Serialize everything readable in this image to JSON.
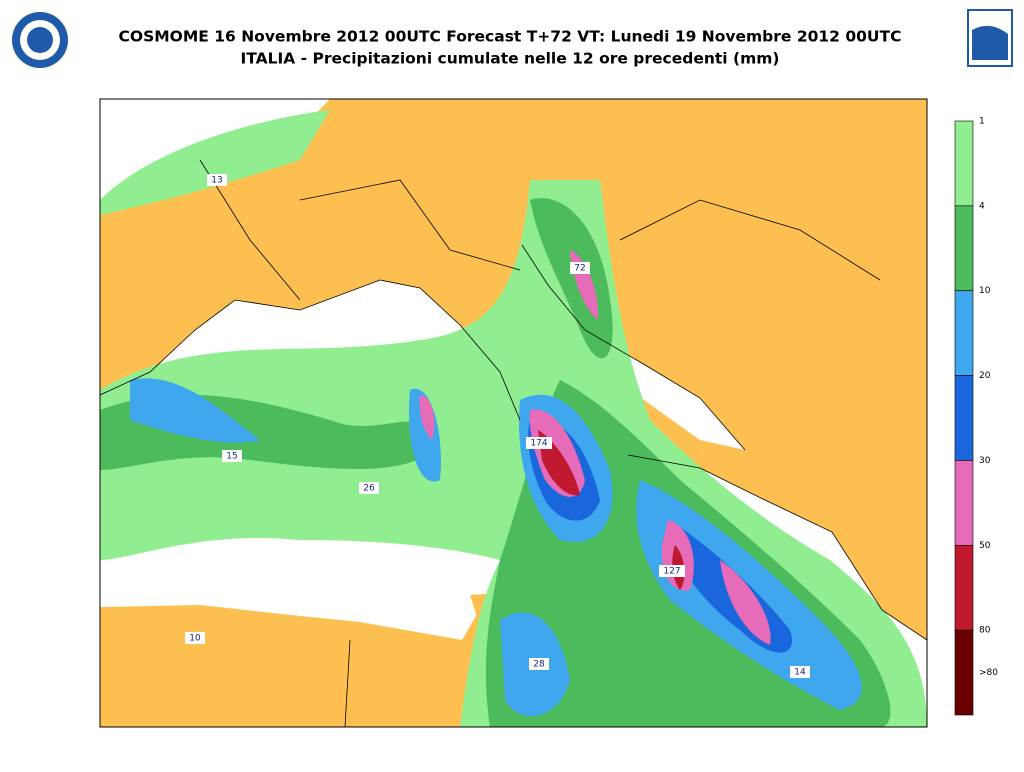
{
  "header": {
    "title": "COSMOME 16 Novembre 2012 00UTC Forecast T+72 VT: Lunedi 19 Novembre 2012 00UTC",
    "subtitle": "ITALIA - Precipitazioni cumulate nelle 12 ore precedenti (mm)"
  },
  "colorbar": {
    "labels": [
      1,
      4,
      10,
      20,
      30,
      50,
      80,
      ">80"
    ],
    "colors": [
      "#90ee90",
      "#4cbb5c",
      "#3ea7ee",
      "#1a66dd",
      "#e66bb8",
      "#c0182e",
      "#6b0000"
    ]
  },
  "map": {
    "land_color": "#fdc050",
    "sea_color": "#ffffff",
    "point_labels": [
      13,
      72,
      174,
      15,
      26,
      127,
      10,
      28,
      14
    ]
  }
}
